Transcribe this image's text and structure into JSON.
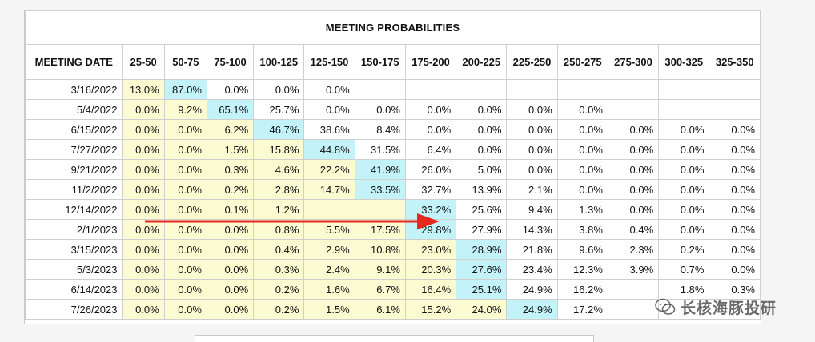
{
  "chart_data": {
    "type": "table",
    "title": "MEETING PROBABILITIES",
    "columns": [
      "MEETING DATE",
      "25-50",
      "50-75",
      "75-100",
      "100-125",
      "125-150",
      "150-175",
      "175-200",
      "200-225",
      "225-250",
      "250-275",
      "275-300",
      "300-325",
      "325-350"
    ],
    "rows": [
      [
        "3/16/2022",
        "13.0%",
        "87.0%",
        "0.0%",
        "0.0%",
        "0.0%",
        "",
        "",
        "",
        "",
        "",
        "",
        "",
        ""
      ],
      [
        "5/4/2022",
        "0.0%",
        "9.2%",
        "65.1%",
        "25.7%",
        "0.0%",
        "0.0%",
        "0.0%",
        "0.0%",
        "0.0%",
        "0.0%",
        "",
        "",
        ""
      ],
      [
        "6/15/2022",
        "0.0%",
        "0.0%",
        "6.2%",
        "46.7%",
        "38.6%",
        "8.4%",
        "0.0%",
        "0.0%",
        "0.0%",
        "0.0%",
        "0.0%",
        "0.0%",
        "0.0%"
      ],
      [
        "7/27/2022",
        "0.0%",
        "0.0%",
        "1.5%",
        "15.8%",
        "44.8%",
        "31.5%",
        "6.4%",
        "0.0%",
        "0.0%",
        "0.0%",
        "0.0%",
        "0.0%",
        "0.0%"
      ],
      [
        "9/21/2022",
        "0.0%",
        "0.0%",
        "0.3%",
        "4.6%",
        "22.2%",
        "41.9%",
        "26.0%",
        "5.0%",
        "0.0%",
        "0.0%",
        "0.0%",
        "0.0%",
        "0.0%"
      ],
      [
        "11/2/2022",
        "0.0%",
        "0.0%",
        "0.2%",
        "2.8%",
        "14.7%",
        "33.5%",
        "32.7%",
        "13.9%",
        "2.1%",
        "0.0%",
        "0.0%",
        "0.0%",
        "0.0%"
      ],
      [
        "12/14/2022",
        "0.0%",
        "0.0%",
        "0.1%",
        "1.2%",
        "",
        "",
        "33.2%",
        "25.6%",
        "9.4%",
        "1.3%",
        "0.0%",
        "0.0%",
        "0.0%"
      ],
      [
        "2/1/2023",
        "0.0%",
        "0.0%",
        "0.0%",
        "0.8%",
        "5.5%",
        "17.5%",
        "29.8%",
        "27.9%",
        "14.3%",
        "3.8%",
        "0.4%",
        "0.0%",
        "0.0%"
      ],
      [
        "3/15/2023",
        "0.0%",
        "0.0%",
        "0.0%",
        "0.4%",
        "2.9%",
        "10.8%",
        "23.0%",
        "28.9%",
        "21.8%",
        "9.6%",
        "2.3%",
        "0.2%",
        "0.0%"
      ],
      [
        "5/3/2023",
        "0.0%",
        "0.0%",
        "0.0%",
        "0.3%",
        "2.4%",
        "9.1%",
        "20.3%",
        "27.6%",
        "23.4%",
        "12.3%",
        "3.9%",
        "0.7%",
        "0.0%"
      ],
      [
        "6/14/2023",
        "0.0%",
        "0.0%",
        "0.0%",
        "0.2%",
        "1.6%",
        "6.7%",
        "16.4%",
        "25.1%",
        "24.9%",
        "16.2%",
        "",
        "1.8%",
        "0.3%"
      ],
      [
        "7/26/2023",
        "0.0%",
        "0.0%",
        "0.0%",
        "0.2%",
        "1.5%",
        "6.1%",
        "15.2%",
        "24.0%",
        "24.9%",
        "17.2%",
        "",
        "",
        ""
      ]
    ],
    "cell_colors": [
      [
        "w",
        "y",
        "c",
        "w",
        "w",
        "w",
        "e",
        "e",
        "e",
        "e",
        "e",
        "e",
        "e",
        "e"
      ],
      [
        "w",
        "y",
        "y",
        "c",
        "w",
        "w",
        "w",
        "w",
        "w",
        "w",
        "w",
        "e",
        "e",
        "e"
      ],
      [
        "w",
        "y",
        "y",
        "y",
        "c",
        "w",
        "w",
        "w",
        "w",
        "w",
        "w",
        "w",
        "w",
        "w"
      ],
      [
        "w",
        "y",
        "y",
        "y",
        "y",
        "c",
        "w",
        "w",
        "w",
        "w",
        "w",
        "w",
        "w",
        "w"
      ],
      [
        "w",
        "y",
        "y",
        "y",
        "y",
        "y",
        "c",
        "w",
        "w",
        "w",
        "w",
        "w",
        "w",
        "w"
      ],
      [
        "w",
        "y",
        "y",
        "y",
        "y",
        "y",
        "c",
        "w",
        "w",
        "w",
        "w",
        "w",
        "w",
        "w"
      ],
      [
        "w",
        "y",
        "y",
        "y",
        "y",
        "y",
        "y",
        "c",
        "w",
        "w",
        "w",
        "w",
        "w",
        "w"
      ],
      [
        "w",
        "y",
        "y",
        "y",
        "y",
        "y",
        "y",
        "c",
        "w",
        "w",
        "w",
        "w",
        "w",
        "w"
      ],
      [
        "w",
        "y",
        "y",
        "y",
        "y",
        "y",
        "y",
        "y",
        "c",
        "w",
        "w",
        "w",
        "w",
        "w"
      ],
      [
        "w",
        "y",
        "y",
        "y",
        "y",
        "y",
        "y",
        "y",
        "c",
        "w",
        "w",
        "w",
        "w",
        "w"
      ],
      [
        "w",
        "y",
        "y",
        "y",
        "y",
        "y",
        "y",
        "y",
        "c",
        "w",
        "w",
        "w",
        "w",
        "w"
      ],
      [
        "w",
        "y",
        "y",
        "y",
        "y",
        "y",
        "y",
        "y",
        "y",
        "c",
        "w",
        "w",
        "w",
        "w"
      ]
    ]
  },
  "colors": {
    "yellow": "#fbfbd2",
    "cyan": "#c3f2f9",
    "arrow": "#e8281e",
    "border": "#cfcfcf"
  },
  "watermark": {
    "text": "长核海豚投研",
    "icon": "wechat-icon"
  }
}
